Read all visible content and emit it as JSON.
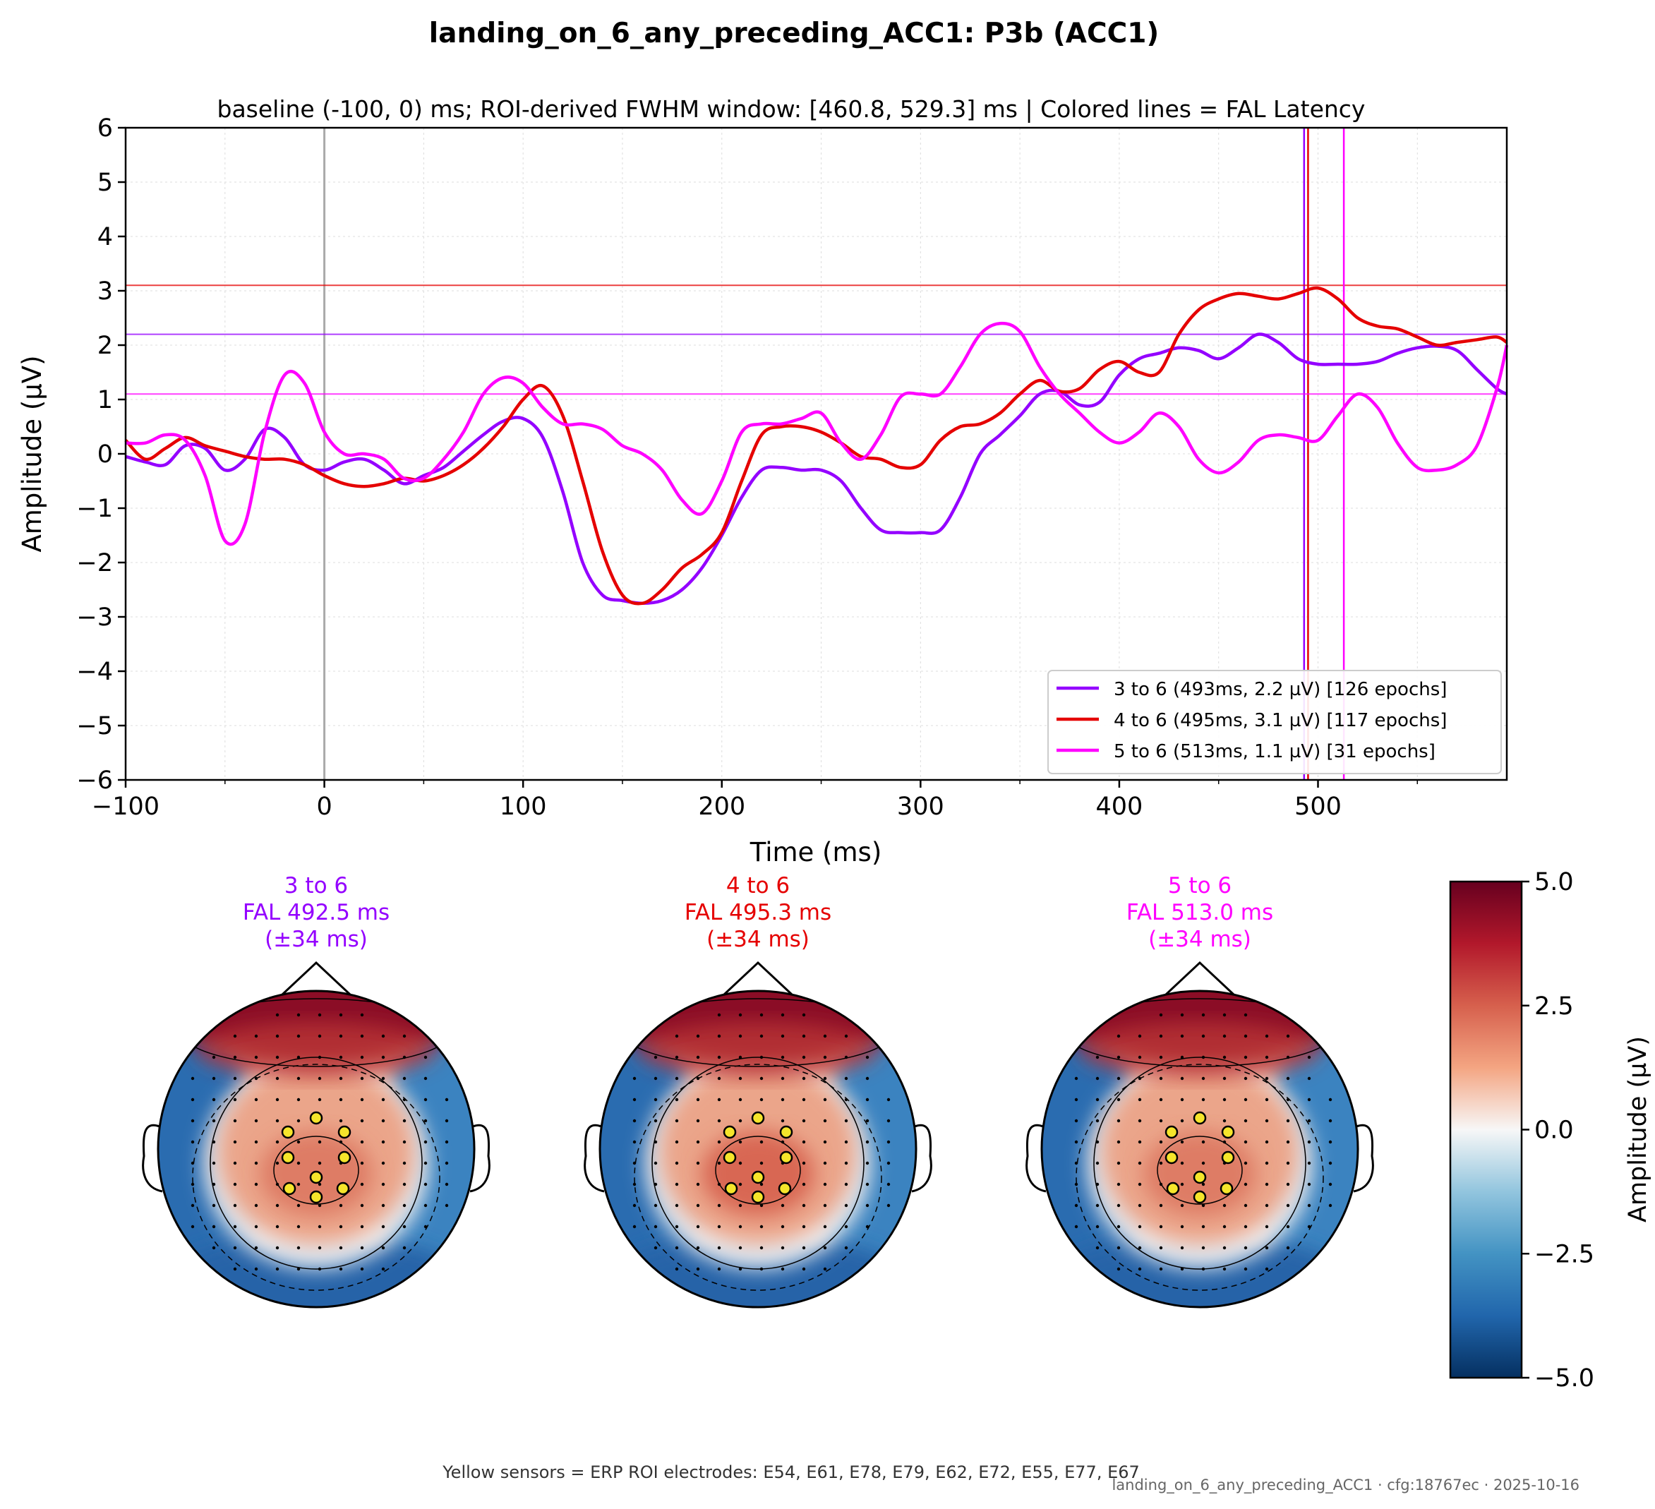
{
  "figure": {
    "title": "landing_on_6_any_preceding_ACC1: P3b (ACC1)",
    "footer": "Yellow sensors = ERP ROI electrodes: E54, E61, E78, E79, E62, E72, E55, E77, E67",
    "stamp": "landing_on_6_any_preceding_ACC1 · cfg:18767ec · 2025-10-16"
  },
  "chart_data": [
    {
      "type": "line",
      "title": "baseline (-100, 0) ms; ROI-derived FWHM window: [460.8, 529.3] ms | Colored lines = FAL Latency",
      "xlabel": "Time (ms)",
      "ylabel": "Amplitude (µV)",
      "xlim": [
        -100,
        595
      ],
      "ylim": [
        -6,
        6
      ],
      "xticks": [
        "−100",
        "0",
        "100",
        "200",
        "300",
        "400",
        "500"
      ],
      "yticks": [
        "−6",
        "−5",
        "−4",
        "−3",
        "−2",
        "−1",
        "0",
        "1",
        "2",
        "3",
        "4",
        "5",
        "6"
      ],
      "grid": true,
      "legend": "lower-right",
      "stimulus_onset_ms": 0,
      "series": [
        {
          "name": "3 to 6 (493ms, 2.2 µV) [126 epochs]",
          "color": "#9400ff",
          "peak_latency_ms": 493,
          "peak_uv": 2.2,
          "x": [
            -100,
            -90,
            -80,
            -70,
            -60,
            -50,
            -40,
            -30,
            -20,
            -10,
            0,
            10,
            20,
            30,
            40,
            50,
            60,
            70,
            80,
            90,
            100,
            110,
            120,
            130,
            140,
            150,
            160,
            170,
            180,
            190,
            200,
            210,
            220,
            230,
            240,
            250,
            260,
            270,
            280,
            290,
            300,
            310,
            320,
            330,
            340,
            350,
            360,
            370,
            380,
            390,
            400,
            410,
            420,
            430,
            440,
            450,
            460,
            470,
            480,
            490,
            500,
            510,
            520,
            530,
            540,
            550,
            560,
            570,
            580,
            590,
            595
          ],
          "y": [
            -0.05,
            -0.15,
            -0.2,
            0.15,
            0.1,
            -0.3,
            -0.1,
            0.45,
            0.3,
            -0.2,
            -0.3,
            -0.15,
            -0.1,
            -0.3,
            -0.55,
            -0.4,
            -0.25,
            0.05,
            0.35,
            0.6,
            0.65,
            0.3,
            -0.7,
            -2.0,
            -2.6,
            -2.7,
            -2.75,
            -2.7,
            -2.5,
            -2.1,
            -1.5,
            -0.8,
            -0.3,
            -0.25,
            -0.3,
            -0.3,
            -0.5,
            -1.0,
            -1.4,
            -1.45,
            -1.45,
            -1.4,
            -0.8,
            0.0,
            0.35,
            0.7,
            1.1,
            1.15,
            0.9,
            0.95,
            1.45,
            1.75,
            1.85,
            1.95,
            1.9,
            1.75,
            1.95,
            2.2,
            2.05,
            1.75,
            1.65,
            1.65,
            1.65,
            1.7,
            1.85,
            1.95,
            1.98,
            1.9,
            1.55,
            1.2,
            1.1
          ]
        },
        {
          "name": "4 to 6 (495ms, 3.1 µV) [117 epochs]",
          "color": "#e50000",
          "peak_latency_ms": 495,
          "peak_uv": 3.1,
          "x": [
            -100,
            -90,
            -80,
            -70,
            -60,
            -50,
            -40,
            -30,
            -20,
            -10,
            0,
            10,
            20,
            30,
            40,
            50,
            60,
            70,
            80,
            90,
            100,
            110,
            120,
            130,
            140,
            150,
            160,
            170,
            180,
            190,
            200,
            210,
            220,
            230,
            240,
            250,
            260,
            270,
            280,
            290,
            300,
            310,
            320,
            330,
            340,
            350,
            360,
            370,
            380,
            390,
            400,
            410,
            420,
            430,
            440,
            450,
            460,
            470,
            480,
            490,
            500,
            510,
            520,
            530,
            540,
            550,
            560,
            570,
            580,
            590,
            595
          ],
          "y": [
            0.25,
            -0.1,
            0.1,
            0.3,
            0.15,
            0.05,
            -0.05,
            -0.1,
            -0.1,
            -0.2,
            -0.4,
            -0.55,
            -0.6,
            -0.55,
            -0.45,
            -0.5,
            -0.4,
            -0.2,
            0.1,
            0.5,
            1.0,
            1.25,
            0.7,
            -0.5,
            -1.8,
            -2.6,
            -2.75,
            -2.5,
            -2.1,
            -1.85,
            -1.45,
            -0.5,
            0.35,
            0.5,
            0.5,
            0.4,
            0.2,
            -0.05,
            -0.1,
            -0.25,
            -0.2,
            0.25,
            0.5,
            0.55,
            0.75,
            1.1,
            1.35,
            1.15,
            1.2,
            1.55,
            1.7,
            1.5,
            1.5,
            2.2,
            2.65,
            2.85,
            2.95,
            2.9,
            2.85,
            2.95,
            3.05,
            2.85,
            2.5,
            2.35,
            2.3,
            2.15,
            2.0,
            2.05,
            2.1,
            2.15,
            2.05
          ]
        },
        {
          "name": "5 to 6 (513ms, 1.1 µV) [31 epochs]",
          "color": "#ff00ff",
          "peak_latency_ms": 513,
          "peak_uv": 1.1,
          "x": [
            -100,
            -90,
            -80,
            -70,
            -60,
            -50,
            -40,
            -30,
            -20,
            -10,
            0,
            10,
            20,
            30,
            40,
            50,
            60,
            70,
            80,
            90,
            100,
            110,
            120,
            130,
            140,
            150,
            160,
            170,
            180,
            190,
            200,
            210,
            220,
            230,
            240,
            250,
            260,
            270,
            280,
            290,
            300,
            310,
            320,
            330,
            340,
            350,
            360,
            370,
            380,
            390,
            400,
            410,
            420,
            430,
            440,
            450,
            460,
            470,
            480,
            490,
            500,
            510,
            520,
            530,
            540,
            550,
            560,
            570,
            580,
            590,
            595
          ],
          "y": [
            0.2,
            0.2,
            0.35,
            0.25,
            -0.4,
            -1.6,
            -1.3,
            0.4,
            1.45,
            1.3,
            0.4,
            0.0,
            0.0,
            -0.1,
            -0.45,
            -0.45,
            -0.1,
            0.4,
            1.1,
            1.4,
            1.3,
            0.85,
            0.55,
            0.55,
            0.45,
            0.15,
            0.0,
            -0.3,
            -0.85,
            -1.1,
            -0.5,
            0.4,
            0.55,
            0.55,
            0.65,
            0.75,
            0.2,
            -0.1,
            0.35,
            1.05,
            1.1,
            1.1,
            1.6,
            2.2,
            2.4,
            2.25,
            1.6,
            1.1,
            0.75,
            0.4,
            0.2,
            0.4,
            0.75,
            0.5,
            -0.1,
            -0.35,
            -0.15,
            0.25,
            0.35,
            0.3,
            0.25,
            0.7,
            1.1,
            0.85,
            0.2,
            -0.25,
            -0.3,
            -0.2,
            0.15,
            1.2,
            2.0
          ]
        }
      ]
    },
    {
      "type": "heatmap",
      "colormap": "RdBu_r",
      "colorbar_label": "Amplitude (µV)",
      "colorbar_ticks": [
        "5.0",
        "2.5",
        "0.0",
        "−2.5",
        "−5.0"
      ],
      "vlim": [
        -5,
        5
      ],
      "maps": [
        {
          "title_lines": [
            "3 to 6",
            "FAL 492.5 ms",
            "(±34 ms)"
          ],
          "color": "#9400ff",
          "fal_ms": 492.5,
          "window_ms": 34
        },
        {
          "title_lines": [
            "4 to 6",
            "FAL 495.3 ms",
            "(±34 ms)"
          ],
          "color": "#e50000",
          "fal_ms": 495.3,
          "window_ms": 34
        },
        {
          "title_lines": [
            "5 to 6",
            "FAL 513.0 ms",
            "(±34 ms)"
          ],
          "color": "#ff00ff",
          "fal_ms": 513.0,
          "window_ms": 34
        }
      ]
    }
  ]
}
